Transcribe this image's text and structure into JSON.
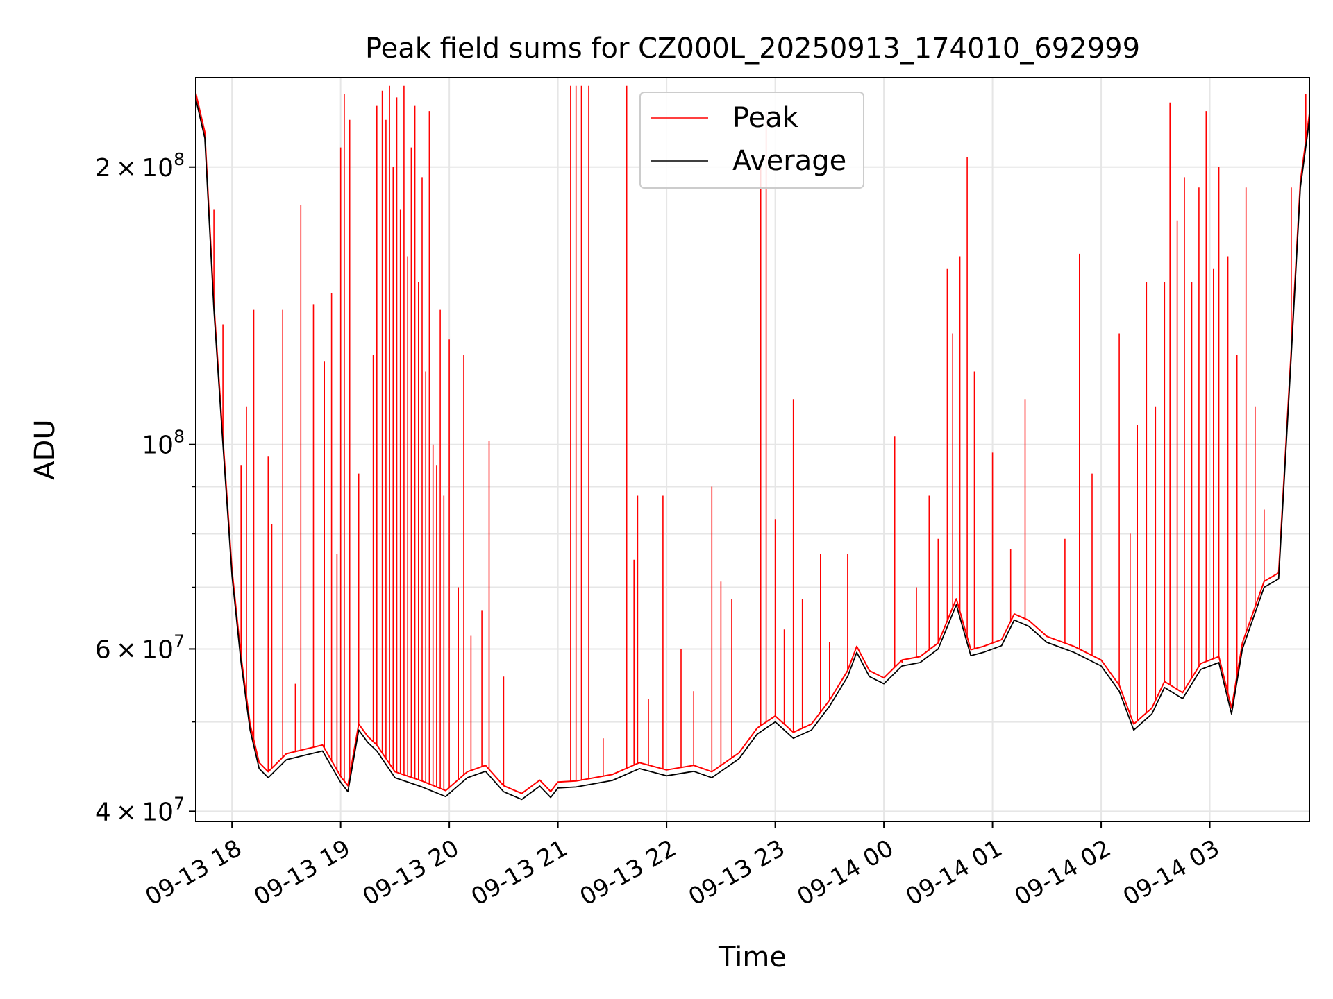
{
  "chart_data": {
    "type": "line",
    "title": "Peak field sums for CZ000L_20250913_174010_692999",
    "xlabel": "Time",
    "ylabel": "ADU",
    "y_scale": "log",
    "ylim": [
      39000000,
      250000000
    ],
    "xlim": [
      "2025-09-13 17:40",
      "2025-09-14 03:55"
    ],
    "grid": true,
    "legend_position": "upper center",
    "x_ticks": [
      {
        "t": "2025-09-13 18:00",
        "label": "09-13 18"
      },
      {
        "t": "2025-09-13 19:00",
        "label": "09-13 19"
      },
      {
        "t": "2025-09-13 20:00",
        "label": "09-13 20"
      },
      {
        "t": "2025-09-13 21:00",
        "label": "09-13 21"
      },
      {
        "t": "2025-09-13 22:00",
        "label": "09-13 22"
      },
      {
        "t": "2025-09-13 23:00",
        "label": "09-13 23"
      },
      {
        "t": "2025-09-14 00:00",
        "label": "09-14 00"
      },
      {
        "t": "2025-09-14 01:00",
        "label": "09-14 01"
      },
      {
        "t": "2025-09-14 02:00",
        "label": "09-14 02"
      },
      {
        "t": "2025-09-14 03:00",
        "label": "09-14 03"
      }
    ],
    "y_ticks_major": [
      {
        "value": 40000000,
        "mant": "4",
        "sym": "×",
        "base": "10",
        "exp": "7"
      },
      {
        "value": 60000000,
        "mant": "6",
        "sym": "×",
        "base": "10",
        "exp": "7"
      },
      {
        "value": 100000000,
        "mant": "",
        "sym": "",
        "base": "10",
        "exp": "8"
      },
      {
        "value": 200000000,
        "mant": "2",
        "sym": "×",
        "base": "10",
        "exp": "8"
      }
    ],
    "y_ticks_minor": [
      50000000,
      70000000,
      80000000,
      90000000
    ],
    "series": [
      {
        "name": "Average",
        "color": "#000000",
        "points": [
          [
            "2025-09-13 17:40",
            237000000
          ],
          [
            "2025-09-13 17:45",
            215000000
          ],
          [
            "2025-09-13 17:50",
            140000000
          ],
          [
            "2025-09-13 17:55",
            100000000
          ],
          [
            "2025-09-13 18:00",
            72000000
          ],
          [
            "2025-09-13 18:05",
            58000000
          ],
          [
            "2025-09-13 18:10",
            49000000
          ],
          [
            "2025-09-13 18:15",
            44500000
          ],
          [
            "2025-09-13 18:20",
            43500000
          ],
          [
            "2025-09-13 18:30",
            45500000
          ],
          [
            "2025-09-13 18:40",
            46000000
          ],
          [
            "2025-09-13 18:50",
            46500000
          ],
          [
            "2025-09-13 19:00",
            43000000
          ],
          [
            "2025-09-13 19:04",
            42000000
          ],
          [
            "2025-09-13 19:10",
            49000000
          ],
          [
            "2025-09-13 19:15",
            47500000
          ],
          [
            "2025-09-13 19:20",
            46500000
          ],
          [
            "2025-09-13 19:30",
            43500000
          ],
          [
            "2025-09-13 19:45",
            42500000
          ],
          [
            "2025-09-13 19:58",
            41500000
          ],
          [
            "2025-09-13 20:10",
            43500000
          ],
          [
            "2025-09-13 20:20",
            44200000
          ],
          [
            "2025-09-13 20:30",
            42000000
          ],
          [
            "2025-09-13 20:40",
            41200000
          ],
          [
            "2025-09-13 20:50",
            42600000
          ],
          [
            "2025-09-13 20:56",
            41400000
          ],
          [
            "2025-09-13 21:00",
            42400000
          ],
          [
            "2025-09-13 21:10",
            42500000
          ],
          [
            "2025-09-13 21:30",
            43200000
          ],
          [
            "2025-09-13 21:45",
            44500000
          ],
          [
            "2025-09-13 22:00",
            43700000
          ],
          [
            "2025-09-13 22:15",
            44200000
          ],
          [
            "2025-09-13 22:25",
            43500000
          ],
          [
            "2025-09-13 22:40",
            45600000
          ],
          [
            "2025-09-13 22:50",
            48500000
          ],
          [
            "2025-09-13 23:00",
            50000000
          ],
          [
            "2025-09-13 23:10",
            48000000
          ],
          [
            "2025-09-13 23:20",
            49000000
          ],
          [
            "2025-09-13 23:30",
            52000000
          ],
          [
            "2025-09-13 23:40",
            56000000
          ],
          [
            "2025-09-13 23:45",
            59500000
          ],
          [
            "2025-09-13 23:52",
            56000000
          ],
          [
            "2025-09-14 00:00",
            55000000
          ],
          [
            "2025-09-14 00:10",
            57500000
          ],
          [
            "2025-09-14 00:20",
            58000000
          ],
          [
            "2025-09-14 00:30",
            60000000
          ],
          [
            "2025-09-14 00:40",
            67000000
          ],
          [
            "2025-09-14 00:48",
            59000000
          ],
          [
            "2025-09-14 00:55",
            59500000
          ],
          [
            "2025-09-14 01:05",
            60500000
          ],
          [
            "2025-09-14 01:12",
            64500000
          ],
          [
            "2025-09-14 01:20",
            63500000
          ],
          [
            "2025-09-14 01:30",
            61000000
          ],
          [
            "2025-09-14 01:45",
            59500000
          ],
          [
            "2025-09-14 02:00",
            57500000
          ],
          [
            "2025-09-14 02:10",
            54000000
          ],
          [
            "2025-09-14 02:18",
            49000000
          ],
          [
            "2025-09-14 02:28",
            51000000
          ],
          [
            "2025-09-14 02:35",
            54500000
          ],
          [
            "2025-09-14 02:45",
            53000000
          ],
          [
            "2025-09-14 02:55",
            57000000
          ],
          [
            "2025-09-14 03:05",
            58000000
          ],
          [
            "2025-09-14 03:12",
            51000000
          ],
          [
            "2025-09-14 03:18",
            60000000
          ],
          [
            "2025-09-14 03:30",
            70000000
          ],
          [
            "2025-09-14 03:38",
            71500000
          ],
          [
            "2025-09-14 03:45",
            125000000
          ],
          [
            "2025-09-14 03:50",
            190000000
          ],
          [
            "2025-09-14 03:55",
            225000000
          ]
        ]
      },
      {
        "name": "Peak",
        "color": "#ff0000",
        "baseline_offset": 1.015,
        "spikes": [
          [
            "2025-09-13 17:50",
            180000000
          ],
          [
            "2025-09-13 17:55",
            135000000
          ],
          [
            "2025-09-13 18:05",
            95000000
          ],
          [
            "2025-09-13 18:08",
            110000000
          ],
          [
            "2025-09-13 18:12",
            140000000
          ],
          [
            "2025-09-13 18:20",
            97000000
          ],
          [
            "2025-09-13 18:22",
            82000000
          ],
          [
            "2025-09-13 18:28",
            140000000
          ],
          [
            "2025-09-13 18:35",
            55000000
          ],
          [
            "2025-09-13 18:38",
            182000000
          ],
          [
            "2025-09-13 18:45",
            142000000
          ],
          [
            "2025-09-13 18:51",
            123000000
          ],
          [
            "2025-09-13 18:55",
            146000000
          ],
          [
            "2025-09-13 18:58",
            76000000
          ],
          [
            "2025-09-13 19:00",
            210000000
          ],
          [
            "2025-09-13 19:02",
            240000000
          ],
          [
            "2025-09-13 19:05",
            225000000
          ],
          [
            "2025-09-13 19:10",
            93000000
          ],
          [
            "2025-09-13 19:18",
            125000000
          ],
          [
            "2025-09-13 19:20",
            233000000
          ],
          [
            "2025-09-13 19:23",
            242000000
          ],
          [
            "2025-09-13 19:25",
            225000000
          ],
          [
            "2025-09-13 19:27",
            245000000
          ],
          [
            "2025-09-13 19:29",
            200000000
          ],
          [
            "2025-09-13 19:31",
            238000000
          ],
          [
            "2025-09-13 19:33",
            180000000
          ],
          [
            "2025-09-13 19:35",
            245000000
          ],
          [
            "2025-09-13 19:37",
            160000000
          ],
          [
            "2025-09-13 19:39",
            210000000
          ],
          [
            "2025-09-13 19:41",
            233000000
          ],
          [
            "2025-09-13 19:43",
            150000000
          ],
          [
            "2025-09-13 19:45",
            195000000
          ],
          [
            "2025-09-13 19:47",
            120000000
          ],
          [
            "2025-09-13 19:49",
            230000000
          ],
          [
            "2025-09-13 19:51",
            100000000
          ],
          [
            "2025-09-13 19:53",
            95000000
          ],
          [
            "2025-09-13 19:55",
            140000000
          ],
          [
            "2025-09-13 19:57",
            88000000
          ],
          [
            "2025-09-13 20:00",
            130000000
          ],
          [
            "2025-09-13 20:05",
            70000000
          ],
          [
            "2025-09-13 20:08",
            125000000
          ],
          [
            "2025-09-13 20:12",
            62000000
          ],
          [
            "2025-09-13 20:18",
            66000000
          ],
          [
            "2025-09-13 20:22",
            101000000
          ],
          [
            "2025-09-13 20:30",
            56000000
          ],
          [
            "2025-09-13 21:07",
            245000000
          ],
          [
            "2025-09-13 21:10",
            245000000
          ],
          [
            "2025-09-13 21:13",
            245000000
          ],
          [
            "2025-09-13 21:17",
            245000000
          ],
          [
            "2025-09-13 21:25",
            48000000
          ],
          [
            "2025-09-13 21:38",
            245000000
          ],
          [
            "2025-09-13 21:42",
            75000000
          ],
          [
            "2025-09-13 21:44",
            88000000
          ],
          [
            "2025-09-13 21:50",
            53000000
          ],
          [
            "2025-09-13 21:58",
            88000000
          ],
          [
            "2025-09-13 22:08",
            60000000
          ],
          [
            "2025-09-13 22:15",
            54000000
          ],
          [
            "2025-09-13 22:25",
            90000000
          ],
          [
            "2025-09-13 22:30",
            71000000
          ],
          [
            "2025-09-13 22:36",
            68000000
          ],
          [
            "2025-09-13 22:52",
            200000000
          ],
          [
            "2025-09-13 22:55",
            230000000
          ],
          [
            "2025-09-13 23:00",
            83000000
          ],
          [
            "2025-09-13 23:05",
            63000000
          ],
          [
            "2025-09-13 23:10",
            112000000
          ],
          [
            "2025-09-13 23:15",
            68000000
          ],
          [
            "2025-09-13 23:25",
            76000000
          ],
          [
            "2025-09-13 23:30",
            61000000
          ],
          [
            "2025-09-13 23:40",
            76000000
          ],
          [
            "2025-09-14 00:06",
            102000000
          ],
          [
            "2025-09-14 00:10",
            58000000
          ],
          [
            "2025-09-14 00:18",
            70000000
          ],
          [
            "2025-09-14 00:25",
            88000000
          ],
          [
            "2025-09-14 00:30",
            79000000
          ],
          [
            "2025-09-14 00:35",
            155000000
          ],
          [
            "2025-09-14 00:38",
            132000000
          ],
          [
            "2025-09-14 00:42",
            160000000
          ],
          [
            "2025-09-14 00:46",
            205000000
          ],
          [
            "2025-09-14 00:50",
            120000000
          ],
          [
            "2025-09-14 01:00",
            98000000
          ],
          [
            "2025-09-14 01:10",
            77000000
          ],
          [
            "2025-09-14 01:18",
            112000000
          ],
          [
            "2025-09-14 01:40",
            79000000
          ],
          [
            "2025-09-14 01:48",
            161000000
          ],
          [
            "2025-09-14 01:55",
            93000000
          ],
          [
            "2025-09-14 02:10",
            132000000
          ],
          [
            "2025-09-14 02:16",
            80000000
          ],
          [
            "2025-09-14 02:20",
            105000000
          ],
          [
            "2025-09-14 02:25",
            150000000
          ],
          [
            "2025-09-14 02:30",
            110000000
          ],
          [
            "2025-09-14 02:35",
            150000000
          ],
          [
            "2025-09-14 02:38",
            235000000
          ],
          [
            "2025-09-14 02:42",
            175000000
          ],
          [
            "2025-09-14 02:46",
            195000000
          ],
          [
            "2025-09-14 02:50",
            150000000
          ],
          [
            "2025-09-14 02:54",
            190000000
          ],
          [
            "2025-09-14 02:58",
            230000000
          ],
          [
            "2025-09-14 03:02",
            155000000
          ],
          [
            "2025-09-14 03:05",
            200000000
          ],
          [
            "2025-09-14 03:10",
            160000000
          ],
          [
            "2025-09-14 03:15",
            125000000
          ],
          [
            "2025-09-14 03:20",
            190000000
          ],
          [
            "2025-09-14 03:25",
            110000000
          ],
          [
            "2025-09-14 03:30",
            85000000
          ],
          [
            "2025-09-14 03:45",
            190000000
          ],
          [
            "2025-09-14 03:53",
            240000000
          ]
        ]
      }
    ]
  }
}
